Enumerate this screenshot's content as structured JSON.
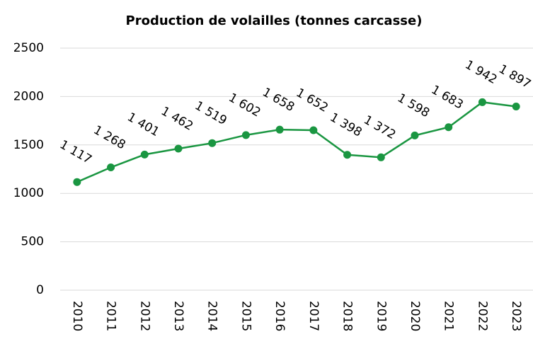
{
  "chart_data": {
    "type": "line",
    "title": "Production de volailles (tonnes carcasse)",
    "categories": [
      "2010",
      "2011",
      "2012",
      "2013",
      "2014",
      "2015",
      "2016",
      "2017",
      "2018",
      "2019",
      "2020",
      "2021",
      "2022",
      "2023"
    ],
    "series": [
      {
        "name": "Production",
        "color": "#1a9641",
        "values": [
          1117,
          1268,
          1401,
          1462,
          1519,
          1602,
          1658,
          1652,
          1398,
          1372,
          1598,
          1683,
          1942,
          1897
        ],
        "value_labels": [
          "1 117",
          "1 268",
          "1 401",
          "1 462",
          "1 519",
          "1 602",
          "1 658",
          "1 652",
          "1 398",
          "1 372",
          "1 598",
          "1 683",
          "1 942",
          "1 897"
        ]
      }
    ],
    "ylim": [
      0,
      2500
    ],
    "yticks": [
      0,
      500,
      1000,
      1500,
      2000,
      2500
    ],
    "grid": true
  }
}
